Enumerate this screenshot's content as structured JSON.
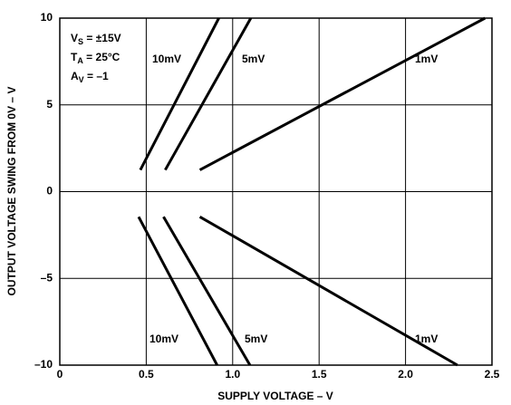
{
  "chart_data": {
    "type": "line",
    "xlabel": "SUPPLY VOLTAGE – V",
    "ylabel": "OUTPUT VOLTAGE SWING FROM 0V – V",
    "annotations": [
      {
        "main": "V",
        "sub": "S",
        "rest": " = ±15V"
      },
      {
        "main": "T",
        "sub": "A",
        "rest": " = 25°C"
      },
      {
        "main": "A",
        "sub": "V",
        "rest": " = –1"
      }
    ],
    "series": [
      {
        "name": "10mV",
        "color": "#000000",
        "x": [
          0.466,
          0.92
        ],
        "values": [
          1.25,
          10
        ]
      },
      {
        "name": "5mV",
        "color": "#000000",
        "x": [
          0.61,
          1.105
        ],
        "values": [
          1.25,
          10
        ]
      },
      {
        "name": "1mV",
        "color": "#000000",
        "x": [
          0.81,
          2.46
        ],
        "values": [
          1.25,
          10
        ]
      },
      {
        "name": "10mV",
        "color": "#000000",
        "x": [
          0.456,
          0.91
        ],
        "values": [
          -1.45,
          -10
        ]
      },
      {
        "name": "5mV",
        "color": "#000000",
        "x": [
          0.6,
          1.1
        ],
        "values": [
          -1.45,
          -10
        ]
      },
      {
        "name": "1mV",
        "color": "#000000",
        "x": [
          0.81,
          2.3
        ],
        "values": [
          -1.45,
          -10
        ]
      }
    ],
    "xlim": [
      0,
      2.5
    ],
    "xticks": [
      0,
      {
        "value": 0.5,
        "label": "0.5"
      },
      {
        "value": 1,
        "label": "1.0"
      },
      {
        "value": 1.5,
        "label": "1.5"
      },
      {
        "value": 2,
        "label": "2.0"
      },
      {
        "value": 2.5,
        "label": "2.5"
      }
    ],
    "ylim": [
      -10,
      10
    ],
    "yticks": [
      {
        "value": -10,
        "label": "–10"
      },
      {
        "value": -5,
        "label": "–5"
      },
      0,
      5,
      10
    ],
    "grid": true
  }
}
